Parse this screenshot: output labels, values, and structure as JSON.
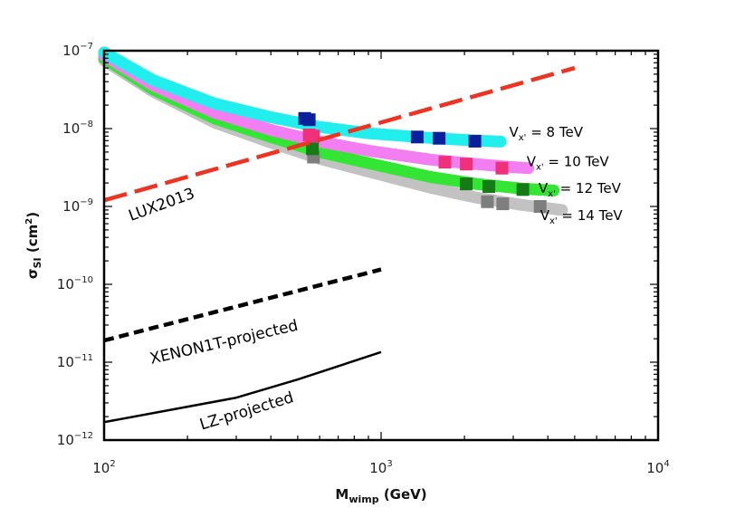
{
  "chart_data": {
    "type": "line",
    "x_scale": "log",
    "y_scale": "log",
    "xlim": [
      100,
      10000
    ],
    "ylim": [
      1e-12,
      1e-07
    ],
    "xlabel": {
      "main": "M",
      "sub": "wimp",
      "unit": " (GeV)"
    },
    "ylabel": {
      "main": "σ",
      "sub": "SI",
      "unit": " (cm",
      "sup": "2",
      "end": ")"
    },
    "x_ticks": [
      {
        "value": 100,
        "base": "10",
        "exp": "2"
      },
      {
        "value": 1000,
        "base": "10",
        "exp": "3"
      },
      {
        "value": 10000,
        "base": "10",
        "exp": "4"
      }
    ],
    "y_ticks": [
      {
        "value": 1e-07,
        "base": "10",
        "exp": "−7"
      },
      {
        "value": 1e-08,
        "base": "10",
        "exp": "−8"
      },
      {
        "value": 1e-09,
        "base": "10",
        "exp": "−9"
      },
      {
        "value": 1e-10,
        "base": "10",
        "exp": "−10"
      },
      {
        "value": 1e-11,
        "base": "10",
        "exp": "−11"
      },
      {
        "value": 1e-12,
        "base": "10",
        "exp": "−12"
      }
    ],
    "bands": [
      {
        "name": "Vx' = 8 TeV",
        "label": {
          "prefix": "V",
          "sub": "x'",
          "text": " = 8 TeV"
        },
        "label_at": [
          2900,
          7.9e-09
        ],
        "color": "#22eeee",
        "marker_color": "#0a1f9a",
        "curve": [
          [
            100,
            9.5e-08
          ],
          [
            150,
            4.2e-08
          ],
          [
            250,
            2.1e-08
          ],
          [
            400,
            1.4e-08
          ],
          [
            600,
            1.05e-08
          ],
          [
            900,
            8.7e-09
          ],
          [
            1500,
            7.6e-09
          ],
          [
            2200,
            7e-09
          ],
          [
            2700,
            6.8e-09
          ]
        ],
        "markers": [
          [
            530,
            1.35e-08
          ],
          [
            550,
            1.3e-08
          ],
          [
            1350,
            7.8e-09
          ],
          [
            1620,
            7.5e-09
          ],
          [
            2180,
            6.9e-09
          ]
        ]
      },
      {
        "name": "Vx' = 10 TeV",
        "label": {
          "prefix": "V",
          "sub": "x'",
          "text": " = 10 TeV"
        },
        "label_at": [
          3350,
          3.3e-09
        ],
        "color": "#f27ef2",
        "marker_color": "#f0307a",
        "curve": [
          [
            100,
            8.7e-08
          ],
          [
            150,
            3.6e-08
          ],
          [
            250,
            1.6e-08
          ],
          [
            400,
            9.6e-09
          ],
          [
            600,
            6.8e-09
          ],
          [
            900,
            5.2e-09
          ],
          [
            1500,
            4e-09
          ],
          [
            2200,
            3.5e-09
          ],
          [
            3000,
            3.2e-09
          ],
          [
            3400,
            3.1e-09
          ]
        ],
        "markers": [
          [
            550,
            8.3e-09
          ],
          [
            570,
            8e-09
          ],
          [
            1700,
            3.7e-09
          ],
          [
            2030,
            3.5e-09
          ],
          [
            2730,
            3.1e-09
          ]
        ]
      },
      {
        "name": "Vx' = 12 TeV",
        "label": {
          "prefix": "V",
          "sub": "x'",
          "text": " = 12 TeV"
        },
        "label_at": [
          3700,
          1.5e-09
        ],
        "color": "#33e633",
        "marker_color": "#167a16",
        "curve": [
          [
            100,
            8e-08
          ],
          [
            150,
            3.2e-08
          ],
          [
            250,
            1.35e-08
          ],
          [
            400,
            7.8e-09
          ],
          [
            600,
            5e-09
          ],
          [
            900,
            3.6e-09
          ],
          [
            1500,
            2.4e-09
          ],
          [
            2200,
            1.95e-09
          ],
          [
            3200,
            1.7e-09
          ],
          [
            4200,
            1.6e-09
          ]
        ],
        "markers": [
          [
            565,
            5.5e-09
          ],
          [
            2030,
            1.95e-09
          ],
          [
            2450,
            1.8e-09
          ],
          [
            3250,
            1.65e-09
          ]
        ]
      },
      {
        "name": "Vx' = 14 TeV",
        "label": {
          "prefix": "V",
          "sub": "x'",
          "text": " = 14 TeV"
        },
        "label_at": [
          3750,
          6.7e-10
        ],
        "color": "#c2c2c2",
        "marker_color": "#7e7e7e",
        "curve": [
          [
            100,
            7.5e-08
          ],
          [
            150,
            3e-08
          ],
          [
            250,
            1.2e-08
          ],
          [
            400,
            6.6e-09
          ],
          [
            600,
            4.1e-09
          ],
          [
            900,
            2.8e-09
          ],
          [
            1500,
            1.75e-09
          ],
          [
            2200,
            1.3e-09
          ],
          [
            3200,
            1.05e-09
          ],
          [
            4500,
            9e-10
          ]
        ],
        "markers": [
          [
            570,
            4.3e-09
          ],
          [
            2420,
            1.15e-09
          ],
          [
            2750,
            1.08e-09
          ],
          [
            3750,
            1e-09
          ]
        ]
      }
    ],
    "lines": [
      {
        "name": "LUX2013",
        "label": "LUX2013",
        "color": "#ee3322",
        "style": "dashed",
        "points": [
          [
            100,
            1.2e-09
          ],
          [
            5000,
            6e-08
          ]
        ],
        "label_at": [
          125,
          6.5e-10
        ],
        "label_angle": -20
      },
      {
        "name": "XENON1T-projected",
        "label": "XENON1T-projected",
        "color": "#000000",
        "style": "dotted",
        "points": [
          [
            100,
            1.9e-11
          ],
          [
            1000,
            1.55e-10
          ]
        ],
        "label_at": [
          148,
          9.5e-12
        ],
        "label_angle": -13
      },
      {
        "name": "LZ-projected",
        "label": "LZ-projected",
        "color": "#000000",
        "style": "solid",
        "points": [
          [
            100,
            1.7e-12
          ],
          [
            300,
            3.5e-12
          ],
          [
            500,
            6e-12
          ],
          [
            1000,
            1.35e-11
          ]
        ],
        "label_at": [
          225,
          1.35e-12
        ],
        "label_angle": -17
      }
    ]
  }
}
